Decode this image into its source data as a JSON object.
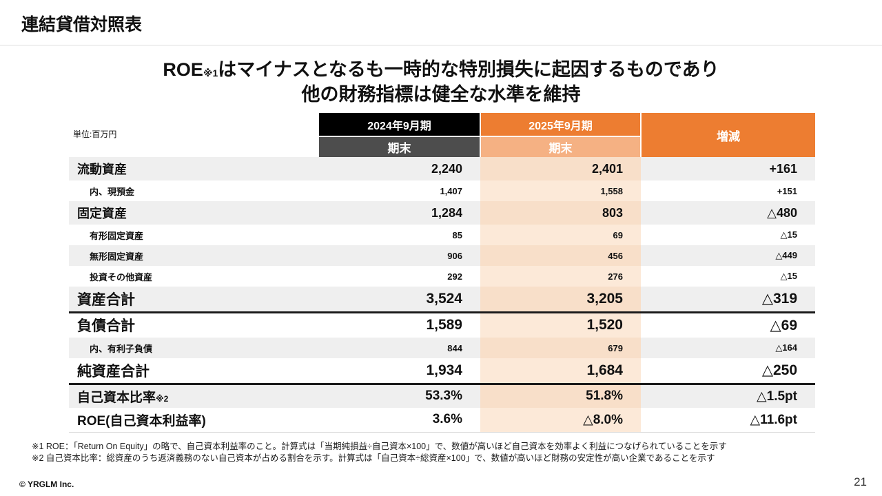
{
  "slide": {
    "title": "連結貸借対照表",
    "copyright": "© YRGLM Inc.",
    "page_number": "21"
  },
  "headline": {
    "line1_prefix": "ROE",
    "line1_ref": "※1",
    "line1_rest": "はマイナスとなるも一時的な特別損失に起因するものであり",
    "line2": "他の財務指標は健全な水準を維持"
  },
  "colors": {
    "accent_orange": "#ED7D31",
    "header_black": "#000000",
    "subheader_gray": "#4D4D4D",
    "subheader_light_orange": "#F5B183",
    "row_stripe_gray": "#EFEFEF",
    "cell_orange": "#FBE5D2"
  },
  "table": {
    "unit_label": "単位:百万円",
    "columns": {
      "period_2024": "2024年9月期",
      "period_2025": "2025年9月期",
      "subheader_2024": "期末",
      "subheader_2025": "期末",
      "change": "増減"
    },
    "rows": [
      {
        "label": "流動資産",
        "v2024": "2,240",
        "v2025": "2,401",
        "change": "+161"
      },
      {
        "label": "内、現預金",
        "v2024": "1,407",
        "v2025": "1,558",
        "change": "+151"
      },
      {
        "label": "固定資産",
        "v2024": "1,284",
        "v2025": "803",
        "change": "△480"
      },
      {
        "label": "有形固定資産",
        "v2024": "85",
        "v2025": "69",
        "change": "△15"
      },
      {
        "label": "無形固定資産",
        "v2024": "906",
        "v2025": "456",
        "change": "△449"
      },
      {
        "label": "投資その他資産",
        "v2024": "292",
        "v2025": "276",
        "change": "△15"
      },
      {
        "label": "資産合計",
        "v2024": "3,524",
        "v2025": "3,205",
        "change": "△319"
      },
      {
        "label": "負債合計",
        "v2024": "1,589",
        "v2025": "1,520",
        "change": "△69"
      },
      {
        "label": "内、有利子負債",
        "v2024": "844",
        "v2025": "679",
        "change": "△164"
      },
      {
        "label": "純資産合計",
        "v2024": "1,934",
        "v2025": "1,684",
        "change": "△250"
      },
      {
        "label": "自己資本比率",
        "label_ref": "※2",
        "v2024": "53.3%",
        "v2025": "51.8%",
        "change": "△1.5pt"
      },
      {
        "label": "ROE(自己資本利益率)",
        "v2024": "3.6%",
        "v2025": "△8.0%",
        "change": "△11.6pt"
      }
    ]
  },
  "footnotes": [
    "※1 ROE：「Return On Equity」の略で、自己資本利益率のこと。計算式は「当期純損益÷自己資本×100」で、数値が高いほど自己資本を効率よく利益につなげられていることを示す",
    "※2 自己資本比率：総資産のうち返済義務のない自己資本が占める割合を示す。計算式は「自己資本÷総資産×100」で、数値が高いほど財務の安定性が高い企業であることを示す"
  ]
}
